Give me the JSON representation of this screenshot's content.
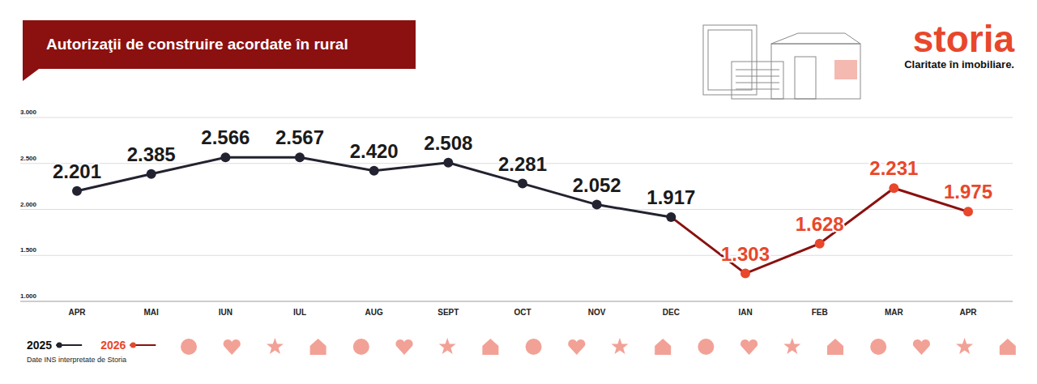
{
  "chart_data": {
    "type": "line",
    "title": "Autorizaţii de construire acordate în rural",
    "categories": [
      "APR",
      "MAI",
      "IUN",
      "IUL",
      "AUG",
      "SEPT",
      "OCT",
      "NOV",
      "DEC",
      "IAN",
      "FEB",
      "MAR",
      "APR"
    ],
    "series": [
      {
        "name": "2025",
        "color": "#222230",
        "marker": "circle",
        "line_style": "solid",
        "values": [
          2201,
          2385,
          2566,
          2567,
          2420,
          2508,
          2281,
          2052,
          1917,
          null,
          null,
          null,
          null
        ],
        "value_labels": [
          "2.201",
          "2.385",
          "2.566",
          "2.567",
          "2.420",
          "2.508",
          "2.281",
          "2.052",
          "1.917",
          null,
          null,
          null,
          null
        ]
      },
      {
        "name": "2026",
        "color": "#e8472b",
        "marker": "circle",
        "line_style": "solid",
        "values": [
          null,
          null,
          null,
          null,
          null,
          null,
          null,
          null,
          1917,
          1303,
          1628,
          2231,
          1975
        ],
        "value_labels": [
          null,
          null,
          null,
          null,
          null,
          null,
          null,
          null,
          "1.917",
          "1.303",
          "1.628",
          "2.231",
          "1.975"
        ]
      }
    ],
    "ylim": [
      1000,
      3000
    ],
    "yticks": [
      {
        "value": 1000,
        "label": "1.000"
      },
      {
        "value": 1500,
        "label": "1.500"
      },
      {
        "value": 2000,
        "label": "2.000"
      },
      {
        "value": 2500,
        "label": "2.500"
      },
      {
        "value": 3000,
        "label": "3.000"
      }
    ],
    "grid": true,
    "data_labels": true,
    "legend": "bottom-left"
  },
  "brand": {
    "name": "storia",
    "tagline": "Claritate în imobiliare."
  },
  "source": "Date INS interpretate de Storia"
}
